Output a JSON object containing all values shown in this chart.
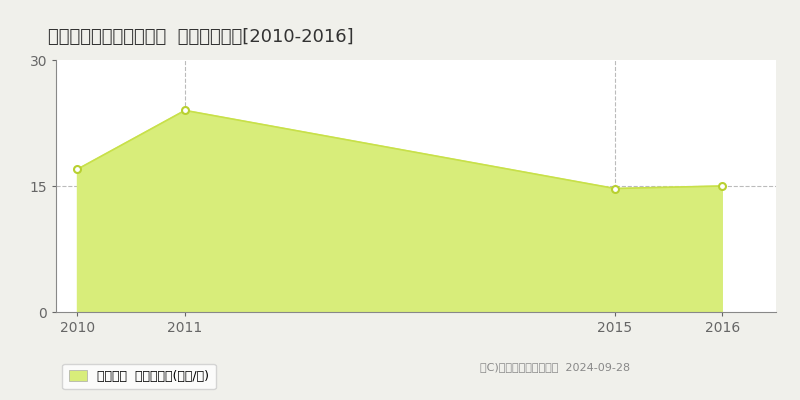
{
  "title": "北九州市小倉北区常盤町  土地価格推移[2010-2016]",
  "years": [
    2010,
    2011,
    2015,
    2016
  ],
  "values": [
    17.0,
    24.0,
    14.7,
    15.0
  ],
  "line_color": "#c8e04a",
  "fill_color": "#d8ed7a",
  "marker_color": "#ffffff",
  "marker_edge_color": "#b8d030",
  "plot_bg_color": "#ffffff",
  "fig_bg_color": "#f0f0eb",
  "grid_color": "#aaaaaa",
  "ylim": [
    0,
    30
  ],
  "yticks": [
    0,
    15,
    30
  ],
  "xlim_min": 2009.8,
  "xlim_max": 2016.5,
  "legend_label": "土地価格  平均坪単価(万円/坪)",
  "copyright_text": "（C)土地価格ドットコム  2024-09-28",
  "vgrid_years": [
    2011,
    2015
  ],
  "hgrid_values": [
    15
  ],
  "title_fontsize": 13,
  "tick_fontsize": 10,
  "legend_fontsize": 9,
  "copyright_fontsize": 8
}
